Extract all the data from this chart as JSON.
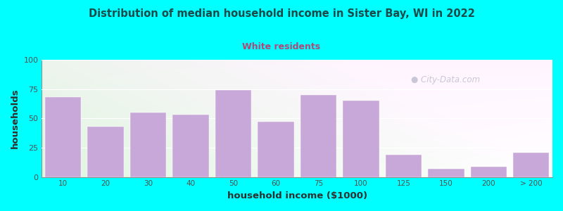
{
  "title": "Distribution of median household income in Sister Bay, WI in 2022",
  "subtitle": "White residents",
  "xlabel": "household income ($1000)",
  "ylabel": "households",
  "background_color": "#00FFFF",
  "bar_color": "#c8a8d8",
  "title_color": "#1a4a4a",
  "subtitle_color": "#b04878",
  "categories": [
    "10",
    "20",
    "30",
    "40",
    "50",
    "60",
    "75",
    "100",
    "125",
    "150",
    "200",
    "> 200"
  ],
  "values": [
    68,
    43,
    55,
    53,
    74,
    47,
    70,
    65,
    19,
    7,
    9,
    21
  ],
  "bar_lefts": [
    0,
    1,
    2,
    3,
    4,
    5,
    6,
    7,
    8,
    9,
    10,
    11
  ],
  "ylim": [
    0,
    100
  ],
  "yticks": [
    0,
    25,
    50,
    75,
    100
  ],
  "watermark": "City-Data.com",
  "watermark_color": "#b8b8c8"
}
